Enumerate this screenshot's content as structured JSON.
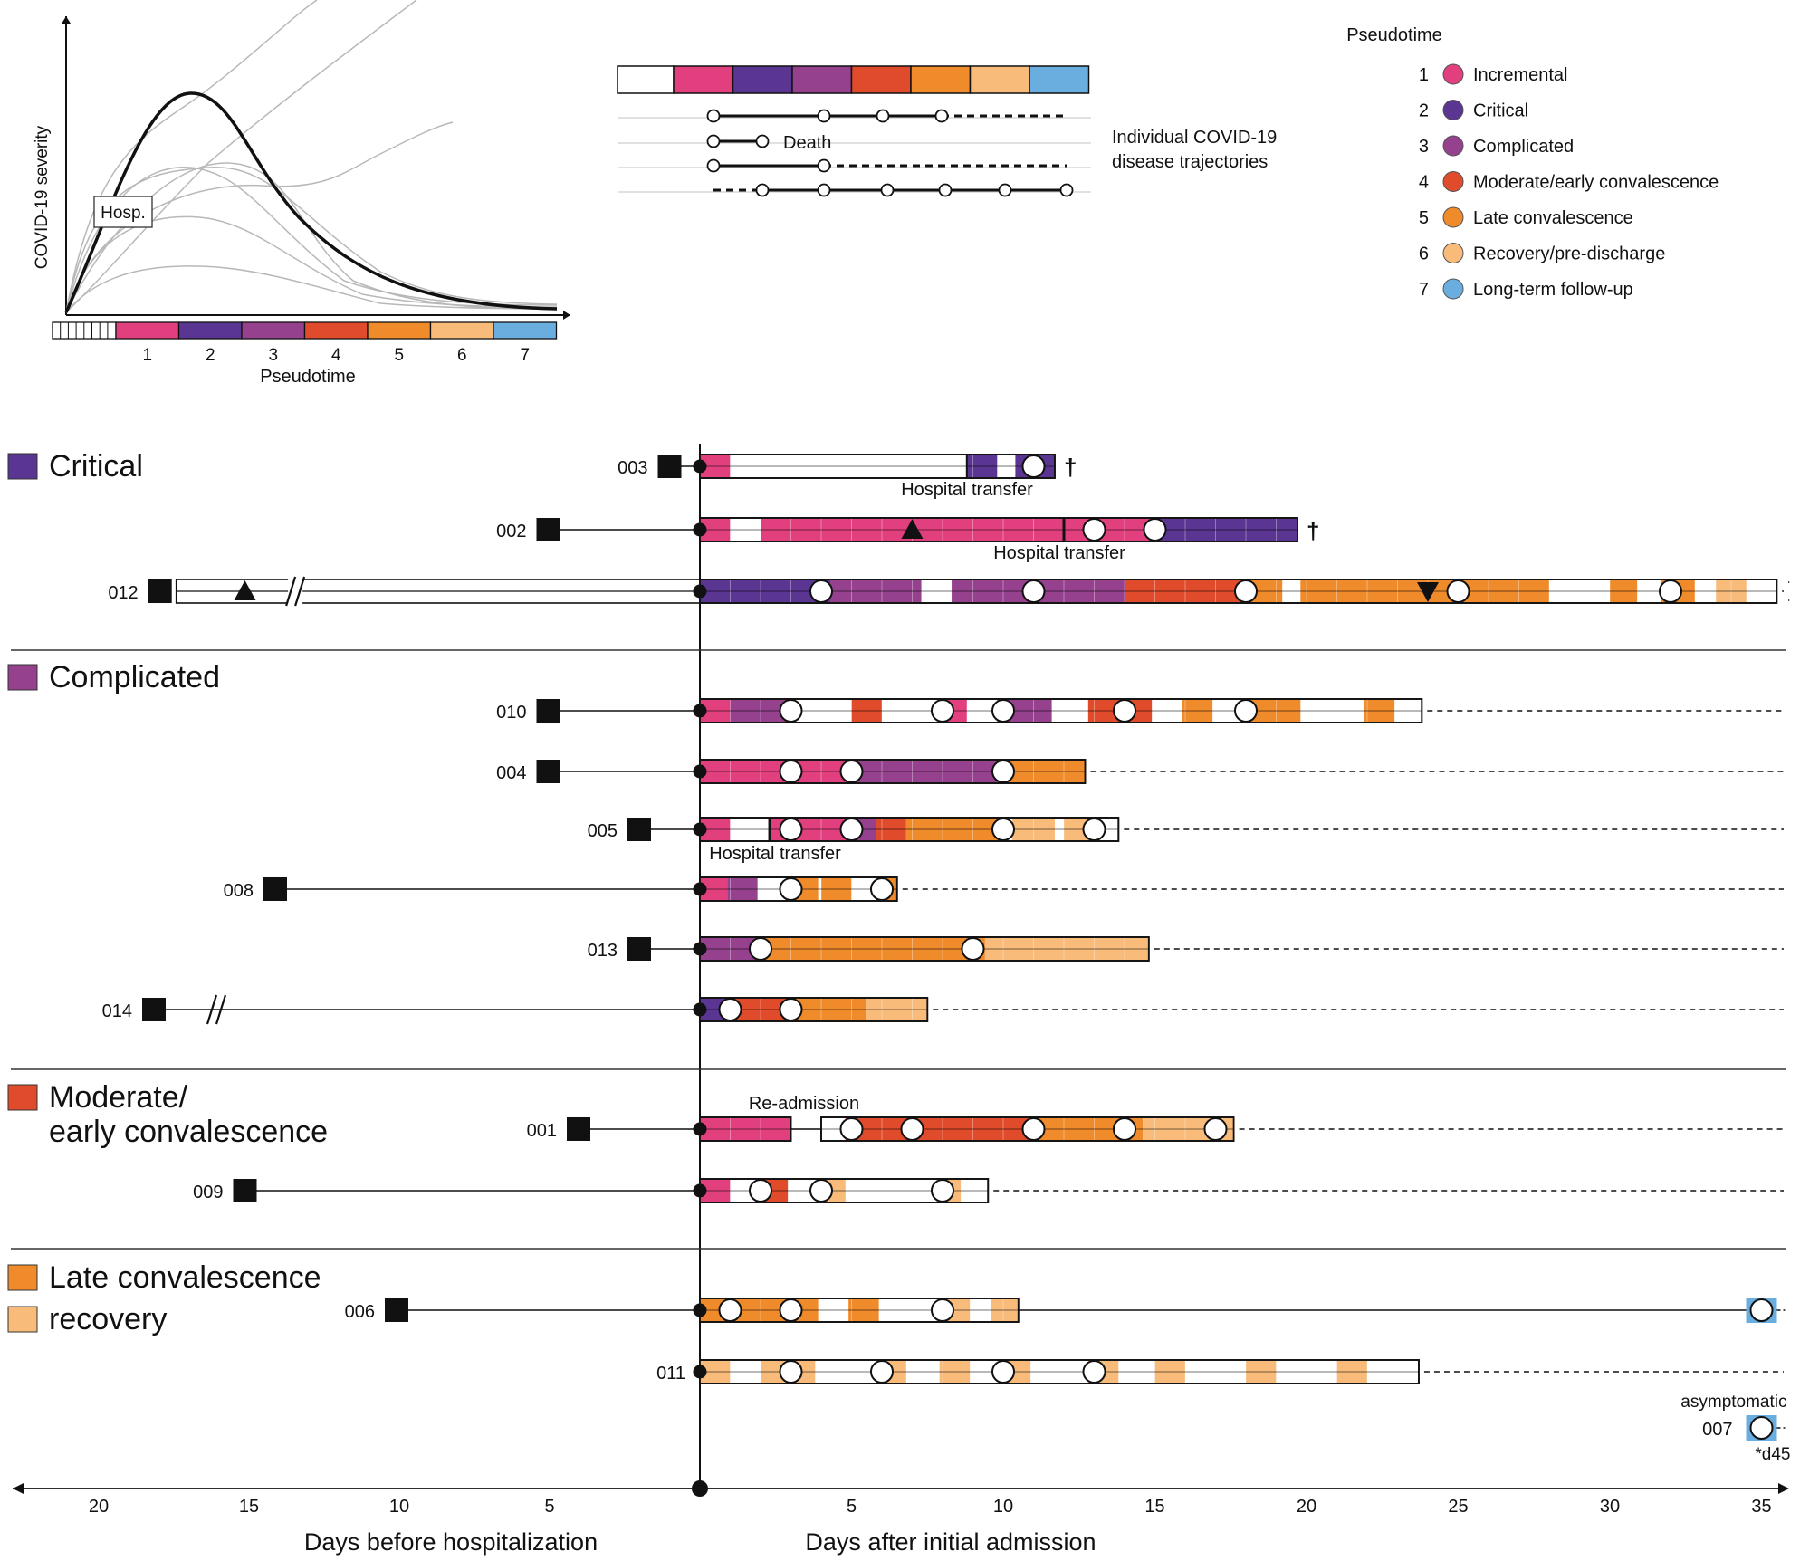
{
  "colors": {
    "1": "#e23f7f",
    "2": "#5a3591",
    "3": "#96418e",
    "4": "#e04b2b",
    "5": "#f08b2c",
    "6": "#f8bb7a",
    "7": "#6aaee0"
  },
  "inset": {
    "ylabel": "COVID-19 severity",
    "xlabel": "Pseudotime",
    "hosp_label": "Hosp.",
    "ticks": [
      "1",
      "2",
      "3",
      "4",
      "5",
      "6",
      "7"
    ]
  },
  "trajectory_demo": {
    "death_label": "Death",
    "caption_lines": [
      "Individual COVID-19",
      "disease trajectories"
    ]
  },
  "legend": {
    "title": "Pseudotime",
    "items": [
      {
        "num": "1",
        "label": "Incremental",
        "color": "1"
      },
      {
        "num": "2",
        "label": "Critical",
        "color": "2"
      },
      {
        "num": "3",
        "label": "Complicated",
        "color": "3"
      },
      {
        "num": "4",
        "label": "Moderate/early convalescence",
        "color": "4"
      },
      {
        "num": "5",
        "label": "Late convalescence",
        "color": "5"
      },
      {
        "num": "6",
        "label": "Recovery/pre-discharge",
        "color": "6"
      },
      {
        "num": "7",
        "label": "Long-term follow-up",
        "color": "7"
      }
    ]
  },
  "groups": [
    {
      "lines": [
        "Critical"
      ],
      "color": "2"
    },
    {
      "lines": [
        "Complicated"
      ],
      "color": "3"
    },
    {
      "lines": [
        "Moderate/",
        "early convalescence"
      ],
      "color": "4"
    },
    {
      "lines": [
        "Late convalescence"
      ],
      "color": "5"
    },
    {
      "lines": [
        "recovery"
      ],
      "color": "6"
    }
  ],
  "annotations": {
    "hospital_transfer": "Hospital transfer",
    "readmission": "Re-admission",
    "asymptomatic": "asymptomatic",
    "d45": "*d45",
    "dagger": "†"
  },
  "axis": {
    "before_ticks": [
      20,
      15,
      10,
      5
    ],
    "after_ticks": [
      5,
      10,
      15,
      20,
      25,
      30,
      35
    ],
    "before_label": "Days before hospitalization",
    "after_label": "Days after initial admission"
  },
  "patients": [
    {
      "id": "003",
      "onset_day": -1,
      "end_day": 11.7,
      "samples": [
        0,
        11
      ],
      "segments": [
        [
          0,
          1,
          "1"
        ],
        [
          8.8,
          9.8,
          "2"
        ],
        [
          10.4,
          11.7,
          "2"
        ]
      ],
      "death": true
    },
    {
      "id": "002",
      "onset_day": -5,
      "end_day": 19.7,
      "samples": [
        0,
        13,
        15
      ],
      "segments": [
        [
          0,
          1,
          "1"
        ],
        [
          2,
          14.9,
          "1"
        ],
        [
          14.9,
          19.7,
          "2"
        ]
      ],
      "death": true,
      "triangle_up": 7
    },
    {
      "id": "012",
      "onset_day": -17.8,
      "end_day": 35.5,
      "samples": [
        0,
        4,
        11,
        18,
        25,
        32
      ],
      "segments": [
        [
          0,
          4.3,
          "2"
        ],
        [
          4.3,
          7.3,
          "3"
        ],
        [
          8.3,
          14,
          "3"
        ],
        [
          14,
          17.8,
          "4"
        ],
        [
          17.8,
          19.2,
          "5"
        ],
        [
          19.8,
          28,
          "5"
        ],
        [
          30,
          30.9,
          "5"
        ],
        [
          31.7,
          32.8,
          "5"
        ],
        [
          33.5,
          34.5,
          "6"
        ]
      ],
      "triangle_up": -15,
      "triangle_down": 24,
      "dashed_end": true
    },
    {
      "id": "010",
      "onset_day": -5,
      "end_day": 23.8,
      "samples": [
        0,
        3,
        8,
        10,
        14,
        18
      ],
      "segments": [
        [
          0,
          1,
          "1"
        ],
        [
          1,
          3,
          "3"
        ],
        [
          5,
          6,
          "4"
        ],
        [
          8,
          8.8,
          "1"
        ],
        [
          9.8,
          11.6,
          "3"
        ],
        [
          12.8,
          14.9,
          "4"
        ],
        [
          15.9,
          16.9,
          "5"
        ],
        [
          18,
          19.8,
          "5"
        ],
        [
          21.9,
          22.9,
          "5"
        ]
      ],
      "dashed_end": true
    },
    {
      "id": "004",
      "onset_day": -5,
      "end_day": 12.7,
      "samples": [
        0,
        3,
        5,
        10
      ],
      "segments": [
        [
          0,
          5,
          "1"
        ],
        [
          5,
          9.9,
          "3"
        ],
        [
          9.9,
          12.7,
          "5"
        ]
      ],
      "dashed_end": true
    },
    {
      "id": "005",
      "onset_day": -2,
      "end_day": 13.8,
      "samples": [
        0,
        3,
        5,
        10,
        13
      ],
      "segments": [
        [
          0,
          1,
          "1"
        ],
        [
          2.3,
          4.9,
          "1"
        ],
        [
          4.9,
          5.8,
          "3"
        ],
        [
          5.8,
          6.8,
          "4"
        ],
        [
          6.8,
          10,
          "5"
        ],
        [
          10.3,
          11.7,
          "6"
        ],
        [
          12,
          13.2,
          "6"
        ]
      ],
      "dashed_end": true,
      "transfer_bar": 2.3
    },
    {
      "id": "008",
      "onset_day": -14,
      "end_day": 6.5,
      "samples": [
        0,
        3,
        6
      ],
      "segments": [
        [
          0,
          0.9,
          "1"
        ],
        [
          0.9,
          1.9,
          "3"
        ],
        [
          3,
          3.9,
          "5"
        ],
        [
          4,
          5,
          "5"
        ],
        [
          5.8,
          6.5,
          "5"
        ]
      ],
      "dashed_end": true
    },
    {
      "id": "013",
      "onset_day": -2,
      "end_day": 14.8,
      "samples": [
        0,
        2,
        9
      ],
      "segments": [
        [
          0,
          2,
          "3"
        ],
        [
          2,
          9.4,
          "5"
        ],
        [
          9.4,
          14.8,
          "6"
        ]
      ],
      "dashed_end": true
    },
    {
      "id": "014",
      "onset_day": -18,
      "end_day": 7.5,
      "samples": [
        0,
        1,
        3
      ],
      "segments": [
        [
          0,
          1,
          "2"
        ],
        [
          1,
          1.3,
          "4"
        ],
        [
          1.3,
          3,
          "4"
        ],
        [
          3,
          5.5,
          "5"
        ],
        [
          5.5,
          7.5,
          "6"
        ]
      ],
      "dashed_end": true,
      "break": -16
    },
    {
      "id": "001",
      "onset_day": -4,
      "end_day": 17.6,
      "samples": [
        5,
        7,
        11,
        14,
        17
      ],
      "segments": [
        [
          0,
          3,
          "1"
        ],
        [
          4.8,
          11,
          "4"
        ],
        [
          11,
          14.6,
          "5"
        ],
        [
          14.6,
          17.6,
          "6"
        ]
      ],
      "dashed_end": true,
      "readmit_gap": [
        3,
        4.0
      ]
    },
    {
      "id": "009",
      "onset_day": -15,
      "end_day": 9.5,
      "samples": [
        0,
        2,
        4,
        8
      ],
      "segments": [
        [
          0,
          1,
          "1"
        ],
        [
          2,
          2.9,
          "4"
        ],
        [
          3.9,
          4.8,
          "6"
        ],
        [
          7.8,
          8.6,
          "6"
        ]
      ],
      "dashed_end": true
    },
    {
      "id": "006",
      "onset_day": -10,
      "end_day": 10.5,
      "samples": [
        0,
        1,
        3,
        8
      ],
      "segments": [
        [
          0,
          3.9,
          "5"
        ],
        [
          4.9,
          5.9,
          "5"
        ],
        [
          7.9,
          8.9,
          "6"
        ],
        [
          9.6,
          10.5,
          "6"
        ]
      ],
      "late_sample": 35
    },
    {
      "id": "011",
      "onset_day": null,
      "end_day": 23.7,
      "samples": [
        0,
        3,
        6,
        10,
        13
      ],
      "segments": [
        [
          0,
          1,
          "6"
        ],
        [
          2,
          3.8,
          "6"
        ],
        [
          5.8,
          6.8,
          "6"
        ],
        [
          7.9,
          8.9,
          "6"
        ],
        [
          9.9,
          10.9,
          "6"
        ],
        [
          12.8,
          13.8,
          "6"
        ],
        [
          15,
          16,
          "6"
        ],
        [
          18,
          19,
          "6"
        ],
        [
          21,
          22,
          "6"
        ]
      ],
      "dashed_end": true
    },
    {
      "id": "007",
      "onset_day": null,
      "end_day": null,
      "samples": [],
      "segments": [],
      "late_sample": 35
    }
  ]
}
